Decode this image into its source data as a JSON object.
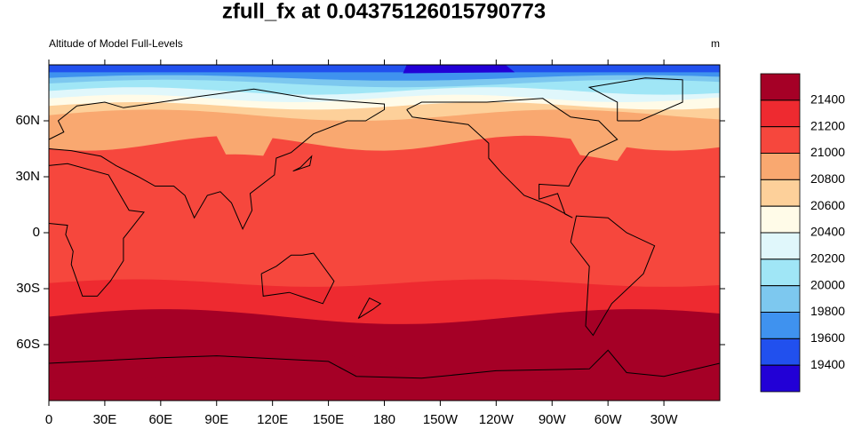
{
  "chart_data": {
    "type": "contour-map",
    "title": "zfull_fx at 0.04375126015790773",
    "left_string": "Altitude of Model Full-Levels",
    "right_string": "m",
    "xlim": [
      0,
      360
    ],
    "xticks": [
      0,
      {
        "value": 30,
        "label": "30E"
      },
      {
        "value": 60,
        "label": "60E"
      },
      {
        "value": 90,
        "label": "90E"
      },
      {
        "value": 120,
        "label": "120E"
      },
      {
        "value": 150,
        "label": "150E"
      },
      180,
      {
        "value": 210,
        "label": "150W"
      },
      {
        "value": 240,
        "label": "120W"
      },
      {
        "value": 270,
        "label": "90W"
      },
      {
        "value": 300,
        "label": "60W"
      },
      {
        "value": 330,
        "label": "30W"
      }
    ],
    "ylim": [
      -90,
      90
    ],
    "yticks": [
      {
        "value": 60,
        "label": "60N"
      },
      {
        "value": 30,
        "label": "30N"
      },
      0,
      {
        "value": -30,
        "label": "30S"
      },
      {
        "value": -60,
        "label": "60S"
      }
    ],
    "levels": [
      21400,
      21200,
      21000,
      20800,
      20600,
      20400,
      20200,
      20000,
      19800,
      19600,
      19400
    ],
    "colors": [
      "#a50026",
      "#ee2a30",
      "#f6473d",
      "#f9a870",
      "#fdd09a",
      "#fffbe8",
      "#e0f7fb",
      "#a0e6f6",
      "#7dc8ef",
      "#3f92ef",
      "#2150ee",
      "#2200d6"
    ]
  }
}
